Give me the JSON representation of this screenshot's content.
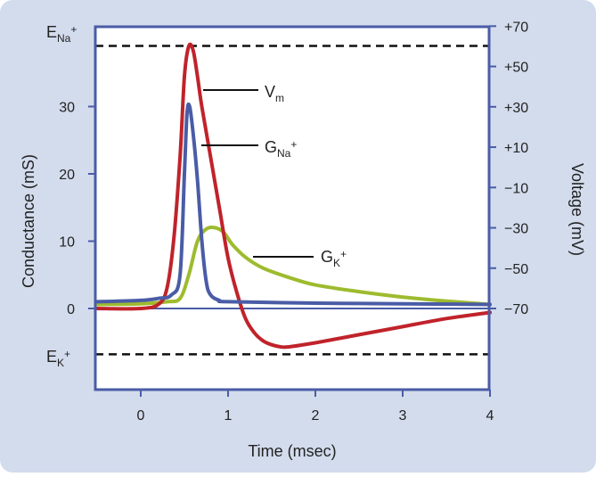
{
  "chart_data": {
    "type": "line",
    "x_axis": {
      "label": "Time (msec)",
      "range": [
        -0.5,
        4
      ],
      "ticks": [
        "0",
        "1",
        "2",
        "3",
        "4"
      ]
    },
    "y_left": {
      "label": "Conductance (mS)",
      "range": [
        -12,
        40
      ],
      "ticks": [
        "0",
        "10",
        "20",
        "30"
      ]
    },
    "y_right": {
      "label": "Voltage (mV)",
      "range": [
        -93.5,
        74.5
      ],
      "ticks": [
        "+70",
        "+50",
        "+30",
        "+10",
        "−10",
        "−30",
        "−50",
        "−70"
      ]
    },
    "reference_lines": [
      {
        "name": "ENa",
        "text_main": "E",
        "text_sub": "Na",
        "text_sup": "+",
        "conductance": 39,
        "style": "dashed"
      },
      {
        "name": "EK",
        "text_main": "E",
        "text_sub": "K",
        "text_sup": "+",
        "conductance": -6.8,
        "style": "dashed"
      }
    ],
    "series": [
      {
        "label_main": "V",
        "label_sub": "m",
        "label_sup": "",
        "color": "#c0232b",
        "axis": "voltage",
        "points": [
          [
            -0.5,
            -70
          ],
          [
            0,
            -70
          ],
          [
            0.2,
            -68
          ],
          [
            0.3,
            -60
          ],
          [
            0.38,
            -35
          ],
          [
            0.45,
            5
          ],
          [
            0.5,
            45
          ],
          [
            0.55,
            60
          ],
          [
            0.6,
            58
          ],
          [
            0.65,
            45
          ],
          [
            0.7,
            30
          ],
          [
            0.8,
            5
          ],
          [
            0.9,
            -20
          ],
          [
            1.0,
            -45
          ],
          [
            1.1,
            -62
          ],
          [
            1.2,
            -75
          ],
          [
            1.3,
            -82
          ],
          [
            1.4,
            -86
          ],
          [
            1.5,
            -88
          ],
          [
            1.6,
            -89
          ],
          [
            1.7,
            -89
          ],
          [
            2.0,
            -87
          ],
          [
            2.5,
            -83
          ],
          [
            3.0,
            -79
          ],
          [
            3.5,
            -75
          ],
          [
            4.0,
            -72
          ]
        ]
      },
      {
        "label_main": "G",
        "label_sub": "Na",
        "label_sup": "+",
        "color": "#4a5ca6",
        "axis": "conductance",
        "points": [
          [
            -0.5,
            1.0
          ],
          [
            0,
            1.2
          ],
          [
            0.2,
            1.5
          ],
          [
            0.35,
            2
          ],
          [
            0.45,
            5
          ],
          [
            0.5,
            20
          ],
          [
            0.53,
            29
          ],
          [
            0.56,
            30
          ],
          [
            0.6,
            26
          ],
          [
            0.65,
            19
          ],
          [
            0.7,
            10
          ],
          [
            0.75,
            4
          ],
          [
            0.8,
            2
          ],
          [
            0.9,
            1.2
          ],
          [
            1.0,
            1.0
          ],
          [
            2.0,
            0.8
          ],
          [
            3.0,
            0.7
          ],
          [
            4.0,
            0.6
          ]
        ]
      },
      {
        "label_main": "G",
        "label_sub": "K",
        "label_sup": "+",
        "color": "#9dbb2e",
        "axis": "conductance",
        "points": [
          [
            -0.5,
            0.6
          ],
          [
            0,
            0.7
          ],
          [
            0.3,
            1.0
          ],
          [
            0.45,
            1.5
          ],
          [
            0.55,
            5
          ],
          [
            0.65,
            10
          ],
          [
            0.75,
            11.8
          ],
          [
            0.85,
            12
          ],
          [
            0.95,
            11.3
          ],
          [
            1.05,
            9.5
          ],
          [
            1.2,
            7.6
          ],
          [
            1.4,
            6
          ],
          [
            1.7,
            4.6
          ],
          [
            2.0,
            3.5
          ],
          [
            2.5,
            2.5
          ],
          [
            3.0,
            1.7
          ],
          [
            3.5,
            1.1
          ],
          [
            4.0,
            0.6
          ]
        ]
      }
    ]
  }
}
